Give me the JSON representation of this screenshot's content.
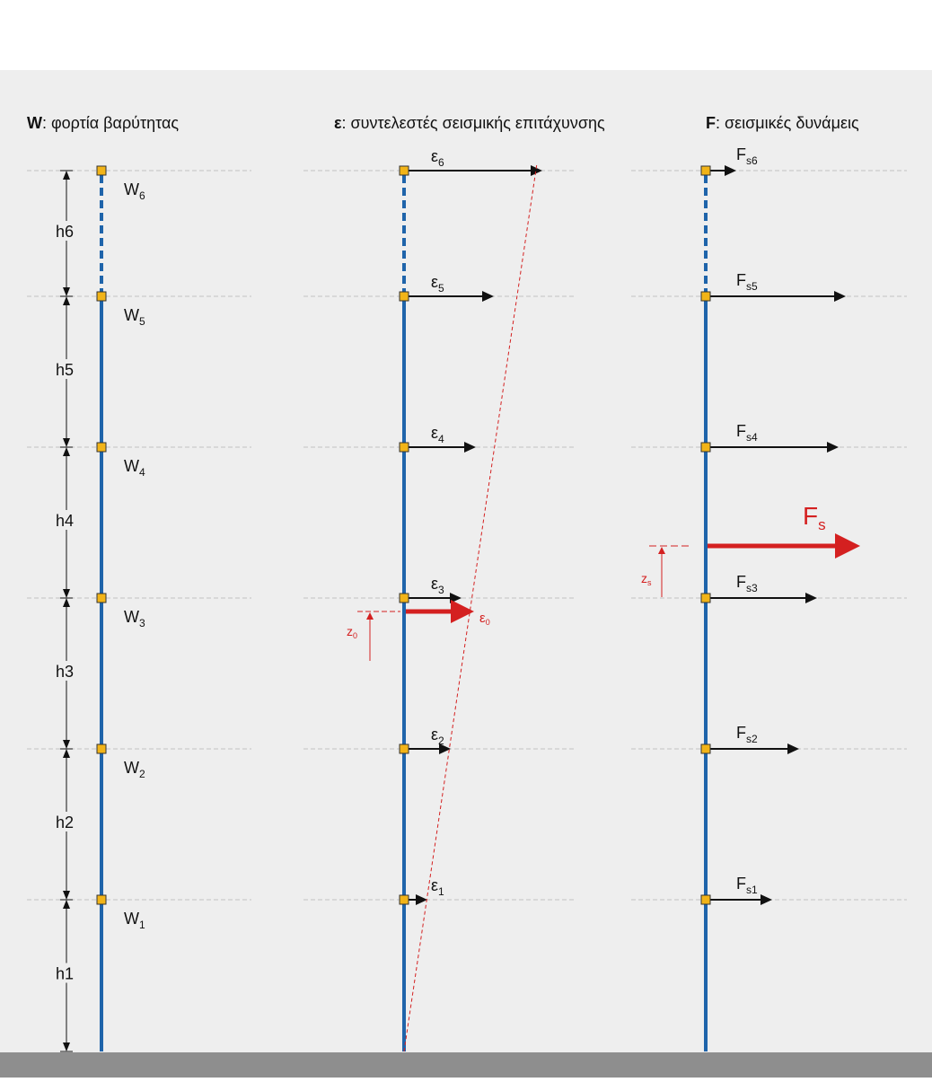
{
  "panels": {
    "gravity": {
      "symbol": "W",
      "title": ": φορτία βαρύτητας"
    },
    "coefficients": {
      "symbol": "ε",
      "title": ": συντελεστές σεισμικής επιτάχυνσης"
    },
    "forces": {
      "symbol": "F",
      "title": ": σεισμικές δυνάμεις"
    }
  },
  "floors": [
    {
      "weight": {
        "base": "W",
        "sub": "1"
      },
      "height": "h1",
      "eps": {
        "base": "ε",
        "sub": "1"
      },
      "force": {
        "base": "F",
        "sub": "s1"
      },
      "eps_value": 26,
      "force_value": 74
    },
    {
      "weight": {
        "base": "W",
        "sub": "2"
      },
      "height": "h2",
      "eps": {
        "base": "ε",
        "sub": "2"
      },
      "force": {
        "base": "F",
        "sub": "s2"
      },
      "eps_value": 52,
      "force_value": 104
    },
    {
      "weight": {
        "base": "W",
        "sub": "3"
      },
      "height": "h3",
      "eps": {
        "base": "ε",
        "sub": "3"
      },
      "force": {
        "base": "F",
        "sub": "s3"
      },
      "eps_value": 64,
      "force_value": 124
    },
    {
      "weight": {
        "base": "W",
        "sub": "4"
      },
      "height": "h4",
      "eps": {
        "base": "ε",
        "sub": "4"
      },
      "force": {
        "base": "F",
        "sub": "s4"
      },
      "eps_value": 80,
      "force_value": 148
    },
    {
      "weight": {
        "base": "W",
        "sub": "5"
      },
      "height": "h5",
      "eps": {
        "base": "ε",
        "sub": "5"
      },
      "force": {
        "base": "F",
        "sub": "s5"
      },
      "eps_value": 100,
      "force_value": 156
    },
    {
      "weight": {
        "base": "W",
        "sub": "6"
      },
      "height": "h6",
      "eps": {
        "base": "ε",
        "sub": "6"
      },
      "force": {
        "base": "F",
        "sub": "s6"
      },
      "eps_value": 154,
      "force_value": 34
    }
  ],
  "resultants": {
    "eps0": {
      "base": "ε",
      "sub": "0",
      "value": 76
    },
    "z0": {
      "base": "z",
      "sub": "0"
    },
    "fs": {
      "base": "F",
      "sub": "s",
      "value": 170
    },
    "zs": {
      "base": "z",
      "sub": "s"
    }
  },
  "colors": {
    "panel_bg": "#eeeeee",
    "ground": "#8e8e8e",
    "column": "#1f64aa",
    "node": "#f2b418",
    "node_border": "#333333",
    "arrow": "#111111",
    "resultant": "#d42020",
    "grid_dash": "#c2c2c2"
  }
}
